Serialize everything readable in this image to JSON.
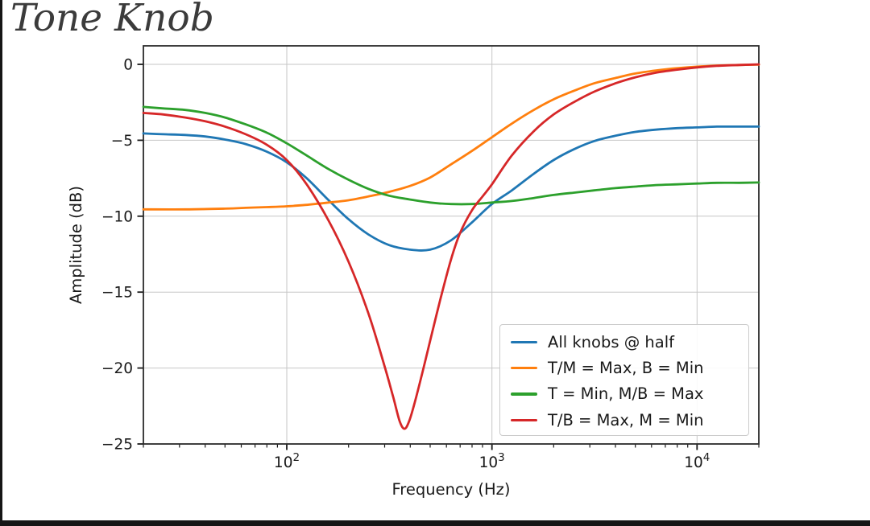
{
  "frame": {
    "left_edge_color": "#161616",
    "bottom_edge_color": "#161616"
  },
  "chart_data": {
    "type": "line",
    "title": "Tone Knob",
    "xlabel": "Frequency (Hz)",
    "ylabel": "Amplitude (dB)",
    "x_scale": "log",
    "xlim": [
      20,
      20000
    ],
    "ylim": [
      -25,
      1.22
    ],
    "grid": true,
    "legend_position": "lower-right-inside",
    "grid_color": "#c6c6c6",
    "xticks": [
      {
        "value": 100,
        "base": "10",
        "exp": "2"
      },
      {
        "value": 1000,
        "base": "10",
        "exp": "3"
      },
      {
        "value": 10000,
        "base": "10",
        "exp": "4"
      }
    ],
    "yticks": [
      {
        "value": 0,
        "label": "0"
      },
      {
        "value": -5,
        "label": "−5"
      },
      {
        "value": -10,
        "label": "−10"
      },
      {
        "value": -15,
        "label": "−15"
      },
      {
        "value": -20,
        "label": "−20"
      },
      {
        "value": -25,
        "label": "−25"
      }
    ],
    "series": [
      {
        "name": "All knobs @ half",
        "color": "#1f77b4",
        "points": [
          [
            20,
            -4.55
          ],
          [
            25,
            -4.6
          ],
          [
            32,
            -4.65
          ],
          [
            40,
            -4.75
          ],
          [
            50,
            -4.95
          ],
          [
            63,
            -5.25
          ],
          [
            80,
            -5.75
          ],
          [
            100,
            -6.45
          ],
          [
            125,
            -7.5
          ],
          [
            160,
            -8.95
          ],
          [
            200,
            -10.2
          ],
          [
            250,
            -11.2
          ],
          [
            315,
            -11.9
          ],
          [
            400,
            -12.2
          ],
          [
            500,
            -12.2
          ],
          [
            630,
            -11.6
          ],
          [
            800,
            -10.4
          ],
          [
            1000,
            -9.2
          ],
          [
            1250,
            -8.3
          ],
          [
            1600,
            -7.2
          ],
          [
            2000,
            -6.3
          ],
          [
            2500,
            -5.6
          ],
          [
            3150,
            -5.05
          ],
          [
            4000,
            -4.7
          ],
          [
            5000,
            -4.45
          ],
          [
            6300,
            -4.3
          ],
          [
            8000,
            -4.2
          ],
          [
            10000,
            -4.15
          ],
          [
            12500,
            -4.1
          ],
          [
            16000,
            -4.1
          ],
          [
            20000,
            -4.1
          ]
        ]
      },
      {
        "name": "T/M = Max, B = Min",
        "color": "#ff7f0e",
        "points": [
          [
            20,
            -9.55
          ],
          [
            32,
            -9.55
          ],
          [
            50,
            -9.5
          ],
          [
            63,
            -9.45
          ],
          [
            80,
            -9.4
          ],
          [
            100,
            -9.35
          ],
          [
            125,
            -9.25
          ],
          [
            160,
            -9.1
          ],
          [
            200,
            -8.95
          ],
          [
            250,
            -8.7
          ],
          [
            315,
            -8.4
          ],
          [
            400,
            -8.0
          ],
          [
            500,
            -7.45
          ],
          [
            630,
            -6.6
          ],
          [
            800,
            -5.7
          ],
          [
            1000,
            -4.8
          ],
          [
            1250,
            -3.9
          ],
          [
            1600,
            -3.0
          ],
          [
            2000,
            -2.3
          ],
          [
            2500,
            -1.75
          ],
          [
            3150,
            -1.25
          ],
          [
            4000,
            -0.9
          ],
          [
            5000,
            -0.6
          ],
          [
            6300,
            -0.4
          ],
          [
            8000,
            -0.25
          ],
          [
            10000,
            -0.15
          ],
          [
            12500,
            -0.08
          ],
          [
            16000,
            -0.04
          ],
          [
            20000,
            -0.02
          ]
        ]
      },
      {
        "name": "T = Min, M/B = Max",
        "color": "#2ca02c",
        "points": [
          [
            20,
            -2.8
          ],
          [
            25,
            -2.9
          ],
          [
            32,
            -3.0
          ],
          [
            40,
            -3.2
          ],
          [
            50,
            -3.5
          ],
          [
            63,
            -3.95
          ],
          [
            80,
            -4.5
          ],
          [
            100,
            -5.2
          ],
          [
            125,
            -6.0
          ],
          [
            160,
            -6.9
          ],
          [
            200,
            -7.6
          ],
          [
            250,
            -8.2
          ],
          [
            315,
            -8.65
          ],
          [
            400,
            -8.9
          ],
          [
            500,
            -9.1
          ],
          [
            630,
            -9.2
          ],
          [
            800,
            -9.2
          ],
          [
            1000,
            -9.1
          ],
          [
            1250,
            -9.0
          ],
          [
            1600,
            -8.8
          ],
          [
            2000,
            -8.6
          ],
          [
            2500,
            -8.45
          ],
          [
            3150,
            -8.3
          ],
          [
            4000,
            -8.15
          ],
          [
            5000,
            -8.05
          ],
          [
            6300,
            -7.95
          ],
          [
            8000,
            -7.9
          ],
          [
            10000,
            -7.85
          ],
          [
            12500,
            -7.8
          ],
          [
            16000,
            -7.8
          ],
          [
            20000,
            -7.78
          ]
        ]
      },
      {
        "name": "T/B = Max, M = Min",
        "color": "#d62728",
        "points": [
          [
            20,
            -3.2
          ],
          [
            25,
            -3.3
          ],
          [
            32,
            -3.5
          ],
          [
            40,
            -3.75
          ],
          [
            50,
            -4.1
          ],
          [
            63,
            -4.6
          ],
          [
            80,
            -5.3
          ],
          [
            100,
            -6.3
          ],
          [
            125,
            -7.9
          ],
          [
            160,
            -10.3
          ],
          [
            200,
            -13.0
          ],
          [
            250,
            -16.4
          ],
          [
            300,
            -19.9
          ],
          [
            330,
            -21.9
          ],
          [
            355,
            -23.5
          ],
          [
            375,
            -24.0
          ],
          [
            395,
            -23.5
          ],
          [
            420,
            -22.3
          ],
          [
            460,
            -20.2
          ],
          [
            500,
            -18.2
          ],
          [
            560,
            -15.5
          ],
          [
            630,
            -12.9
          ],
          [
            700,
            -11.1
          ],
          [
            800,
            -9.6
          ],
          [
            900,
            -8.7
          ],
          [
            1000,
            -7.9
          ],
          [
            1250,
            -6.0
          ],
          [
            1600,
            -4.4
          ],
          [
            2000,
            -3.3
          ],
          [
            2500,
            -2.5
          ],
          [
            3150,
            -1.8
          ],
          [
            4000,
            -1.25
          ],
          [
            5000,
            -0.85
          ],
          [
            6300,
            -0.55
          ],
          [
            8000,
            -0.35
          ],
          [
            10000,
            -0.2
          ],
          [
            12500,
            -0.1
          ],
          [
            16000,
            -0.04
          ],
          [
            20000,
            0.0
          ]
        ]
      }
    ]
  }
}
